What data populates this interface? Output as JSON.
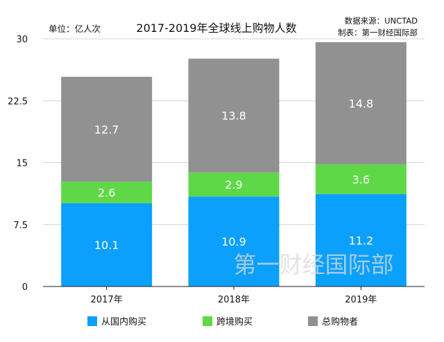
{
  "header": {
    "unit": "单位：亿人次",
    "title": "2017-2019年全球线上购物人数",
    "source": "数据来源：UNCTAD",
    "maker": "制表：第一财经国际部"
  },
  "watermark": "第一财经国际部",
  "chart_data": {
    "type": "bar",
    "stacked": true,
    "title": "2017-2019年全球线上购物人数",
    "ylabel": "",
    "xlabel": "",
    "unit": "亿人次",
    "categories": [
      "2017年",
      "2018年",
      "2019年"
    ],
    "ylim": [
      0,
      30
    ],
    "yticks": [
      0,
      7.5,
      15,
      22.5,
      30
    ],
    "ytick_labels": [
      "0",
      "7.5",
      "15",
      "22.5",
      "30"
    ],
    "grid": true,
    "legend_position": "bottom",
    "series": [
      {
        "name": "从国内购买",
        "values": [
          10.1,
          10.9,
          11.2
        ],
        "labels": [
          "10.1",
          "10.9",
          "11.2"
        ],
        "color": "#0aa0fb"
      },
      {
        "name": "跨境购买",
        "values": [
          2.6,
          2.9,
          3.6
        ],
        "labels": [
          "2.6",
          "2.9",
          "3.6"
        ],
        "color": "#5fd848"
      },
      {
        "name": "总购物者",
        "values": [
          12.7,
          13.8,
          14.8
        ],
        "labels": [
          "12.7",
          "13.8",
          "14.8"
        ],
        "color": "#919191"
      }
    ]
  }
}
